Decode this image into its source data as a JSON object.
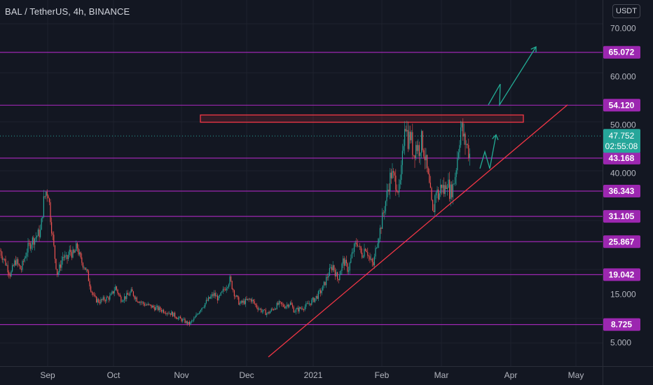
{
  "chart_data": {
    "type": "candlestick",
    "title": "BAL / TetherUS, 4h, BINANCE",
    "currency": "USDT",
    "y_ticks": [
      "70.000",
      "60.000",
      "50.000",
      "40.000",
      "15.000",
      "5.000"
    ],
    "x_ticks": [
      "Sep",
      "Oct",
      "Nov",
      "Dec",
      "2021",
      "Feb",
      "Mar",
      "Apr",
      "May"
    ],
    "ylim": [
      2,
      73
    ],
    "horizontal_levels": [
      {
        "label": "65.072",
        "value": 65.072
      },
      {
        "label": "54.120",
        "value": 54.12
      },
      {
        "label": "43.168",
        "value": 43.168
      },
      {
        "label": "36.343",
        "value": 36.343
      },
      {
        "label": "31.105",
        "value": 31.105
      },
      {
        "label": "25.867",
        "value": 25.867
      },
      {
        "label": "19.042",
        "value": 19.042
      },
      {
        "label": "8.725",
        "value": 8.725
      }
    ],
    "current_price": {
      "value": "47.752",
      "countdown": "02:55:08"
    },
    "resistance_zone": {
      "from": 50.6,
      "to": 52.1
    },
    "path": [
      [
        0,
        24
      ],
      [
        8,
        21.5
      ],
      [
        15,
        19
      ],
      [
        22,
        22
      ],
      [
        30,
        20
      ],
      [
        38,
        24
      ],
      [
        45,
        26
      ],
      [
        52,
        27
      ],
      [
        58,
        28
      ],
      [
        62,
        34
      ],
      [
        66,
        36.5
      ],
      [
        69,
        36
      ],
      [
        72,
        31
      ],
      [
        75,
        27
      ],
      [
        78,
        23
      ],
      [
        82,
        19
      ],
      [
        86,
        21
      ],
      [
        90,
        23
      ],
      [
        95,
        22
      ],
      [
        100,
        24
      ],
      [
        105,
        23
      ],
      [
        110,
        25
      ],
      [
        115,
        22
      ],
      [
        120,
        21
      ],
      [
        125,
        19
      ],
      [
        130,
        16
      ],
      [
        135,
        14
      ],
      [
        142,
        13.5
      ],
      [
        150,
        14
      ],
      [
        158,
        14.5
      ],
      [
        165,
        16.5
      ],
      [
        172,
        14
      ],
      [
        180,
        14.5
      ],
      [
        188,
        15.5
      ],
      [
        195,
        14
      ],
      [
        205,
        13
      ],
      [
        215,
        12.5
      ],
      [
        225,
        12
      ],
      [
        235,
        11.5
      ],
      [
        245,
        11
      ],
      [
        255,
        10
      ],
      [
        262,
        9.5
      ],
      [
        270,
        8.8
      ],
      [
        278,
        10
      ],
      [
        286,
        12
      ],
      [
        295,
        13.5
      ],
      [
        305,
        15
      ],
      [
        312,
        14
      ],
      [
        320,
        16
      ],
      [
        328,
        18
      ],
      [
        335,
        15
      ],
      [
        342,
        13
      ],
      [
        350,
        13.5
      ],
      [
        358,
        14
      ],
      [
        366,
        12.5
      ],
      [
        374,
        11.5
      ],
      [
        382,
        11
      ],
      [
        390,
        12
      ],
      [
        398,
        13
      ],
      [
        406,
        12.5
      ],
      [
        414,
        13.2
      ],
      [
        420,
        11.5
      ],
      [
        428,
        12
      ],
      [
        436,
        12.5
      ],
      [
        445,
        13.5
      ],
      [
        452,
        14.5
      ],
      [
        460,
        16
      ],
      [
        468,
        19
      ],
      [
        475,
        21
      ],
      [
        482,
        18
      ],
      [
        490,
        22
      ],
      [
        497,
        20
      ],
      [
        504,
        24
      ],
      [
        510,
        26
      ],
      [
        516,
        23
      ],
      [
        522,
        25
      ],
      [
        528,
        22
      ],
      [
        533,
        21
      ],
      [
        538,
        26
      ],
      [
        542,
        28
      ],
      [
        546,
        31
      ],
      [
        550,
        34
      ],
      [
        554,
        37
      ],
      [
        558,
        40
      ],
      [
        562,
        39
      ],
      [
        566,
        38
      ],
      [
        570,
        36
      ],
      [
        574,
        42
      ],
      [
        578,
        52
      ],
      [
        582,
        47
      ],
      [
        586,
        48
      ],
      [
        590,
        44
      ],
      [
        594,
        46
      ],
      [
        598,
        45
      ],
      [
        602,
        47
      ],
      [
        606,
        44
      ],
      [
        610,
        40
      ],
      [
        614,
        36
      ],
      [
        618,
        31
      ],
      [
        622,
        37
      ],
      [
        626,
        35
      ],
      [
        630,
        38
      ],
      [
        634,
        36
      ],
      [
        638,
        39
      ],
      [
        642,
        36
      ],
      [
        646,
        37
      ],
      [
        650,
        40
      ],
      [
        654,
        45
      ],
      [
        658,
        50
      ],
      [
        662,
        47
      ],
      [
        666,
        46
      ],
      [
        670,
        44
      ]
    ],
    "trendline": [
      [
        383,
        2
      ],
      [
        810,
        54.2
      ]
    ],
    "projection_short": [
      [
        685,
        41
      ],
      [
        692,
        44.5
      ],
      [
        699,
        41
      ],
      [
        708,
        48
      ]
    ],
    "projection_long": [
      [
        697,
        54.2
      ],
      [
        714,
        58.5
      ],
      [
        713,
        54.2
      ],
      [
        765,
        66.2
      ]
    ]
  }
}
